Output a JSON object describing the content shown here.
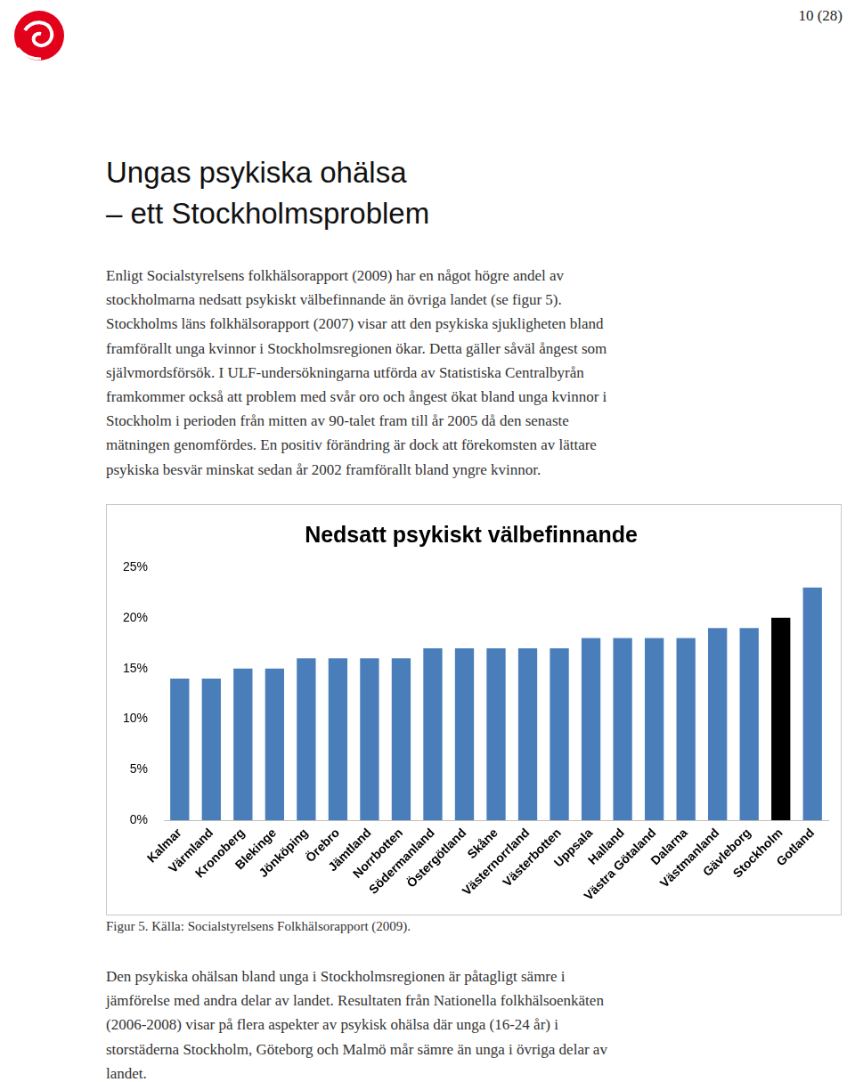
{
  "page_number": "10 (28)",
  "title_lines": [
    "Ungas psykiska ohälsa",
    "– ett Stockholmsproblem"
  ],
  "paragraph_1": [
    "Enligt Socialstyrelsens folkhälsorapport (2009) har en något högre andel av",
    "stockholmarna nedsatt psykiskt välbefinnande än övriga landet (se figur 5).",
    "Stockholms läns folkhälsorapport (2007) visar att den psykiska sjukligheten bland",
    "framförallt unga kvinnor i Stockholmsregionen ökar.  Detta gäller såväl ångest som",
    "självmordsförsök. I ULF-undersökningarna utförda av Statistiska Centralbyrån",
    "framkommer också att problem med svår oro och ångest ökat bland unga kvinnor i",
    "Stockholm i perioden från mitten av 90-talet fram till år 2005 då den senaste",
    "mätningen genomfördes.  En positiv förändring är dock att förekomsten av lättare",
    "psykiska besvär minskat sedan år 2002 framförallt bland yngre kvinnor."
  ],
  "chart_data": {
    "type": "bar",
    "title": "Nedsatt psykiskt välbefinnande",
    "categories": [
      "Kalmar",
      "Värmland",
      "Kronoberg",
      "Blekinge",
      "Jönköping",
      "Örebro",
      "Jämtland",
      "Norrbotten",
      "Södermanland",
      "Östergötland",
      "Skåne",
      "Västernorrland",
      "Västerbotten",
      "Uppsala",
      "Halland",
      "Västra Götaland",
      "Dalarna",
      "Västmanland",
      "Gävleborg",
      "Stockholm",
      "Gotland"
    ],
    "values": [
      14,
      14,
      15,
      15,
      16,
      16,
      16,
      16,
      17,
      17,
      17,
      17,
      17,
      18,
      18,
      18,
      18,
      19,
      19,
      20,
      23
    ],
    "colors": [
      "#4a7ebb",
      "#4a7ebb",
      "#4a7ebb",
      "#4a7ebb",
      "#4a7ebb",
      "#4a7ebb",
      "#4a7ebb",
      "#4a7ebb",
      "#4a7ebb",
      "#4a7ebb",
      "#4a7ebb",
      "#4a7ebb",
      "#4a7ebb",
      "#4a7ebb",
      "#4a7ebb",
      "#4a7ebb",
      "#4a7ebb",
      "#4a7ebb",
      "#4a7ebb",
      "#000000",
      "#4a7ebb"
    ],
    "ylim": [
      0,
      25
    ],
    "yticks": [
      {
        "value": 0,
        "label": "0%"
      },
      {
        "value": 5,
        "label": "5%"
      },
      {
        "value": 10,
        "label": "10%"
      },
      {
        "value": 15,
        "label": "15%"
      },
      {
        "value": 20,
        "label": "20%"
      },
      {
        "value": 25,
        "label": "25%"
      }
    ],
    "grid": false
  },
  "caption": "Figur 5. Källa: Socialstyrelsens Folkhälsorapport (2009).",
  "paragraph_2": [
    "Den psykiska ohälsan bland unga i Stockholmsregionen är påtagligt sämre i",
    "jämförelse med andra delar av landet. Resultaten från Nationella folkhälsoenkäten",
    "(2006-2008) visar på flera aspekter av psykisk ohälsa där unga (16-24 år) i",
    "storstäderna Stockholm, Göteborg och Malmö mår sämre än unga i övriga delar av",
    "landet."
  ]
}
